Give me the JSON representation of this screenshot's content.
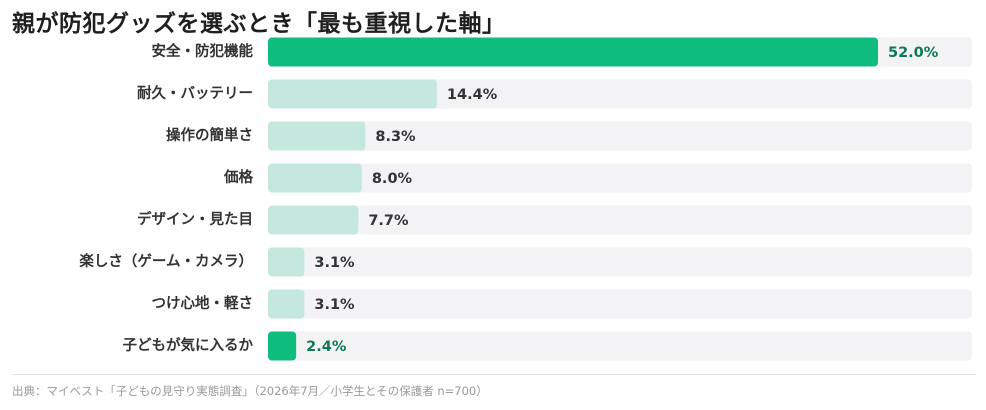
{
  "chart_data": {
    "type": "bar",
    "orientation": "horizontal",
    "title": "親が防犯グッズを選ぶとき「最も重視した軸」",
    "categories": [
      "安全・防犯機能",
      "耐久・バッテリー",
      "操作の簡単さ",
      "価格",
      "デザイン・見た目",
      "楽しさ（ゲーム・カメラ）",
      "つけ心地・軽さ",
      "子どもが気に入るか"
    ],
    "values": [
      52.0,
      14.4,
      8.3,
      8.0,
      7.7,
      3.1,
      3.1,
      2.4
    ],
    "value_labels": [
      "52.0%",
      "14.4%",
      "8.3%",
      "8.0%",
      "7.7%",
      "3.1%",
      "3.1%",
      "2.4%"
    ],
    "highlighted": [
      true,
      false,
      false,
      false,
      false,
      false,
      false,
      true
    ],
    "xlim": [
      0,
      100
    ],
    "unit": "%",
    "grid": false,
    "legend": "none",
    "colors": {
      "highlight": "#0fbd7e",
      "normal": "#c4e7de",
      "track": "#f3f3f5",
      "highlight_text": "#0d7a52",
      "normal_text": "#333333"
    }
  },
  "source": "出典：マイベスト「子どもの見守り実態調査」（2026年7月／小学生とその保護者 n=700）"
}
